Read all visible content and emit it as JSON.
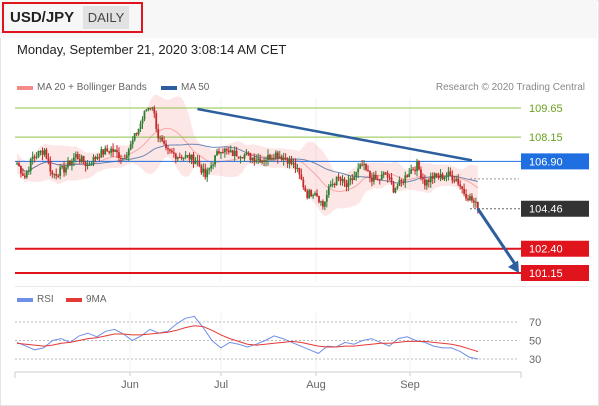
{
  "header": {
    "pair": "USD/JPY",
    "timeframe": "DAILY",
    "timestamp": "Monday, September 21, 2020 3:08:14 AM CET"
  },
  "legend": {
    "bollinger": "MA 20 + Bollinger Bands",
    "ma50": "MA 50",
    "rsi": "RSI",
    "ma9": "9MA",
    "credit": "Research © 2020 Trading Central"
  },
  "colors": {
    "up": "#2e7d32",
    "down": "#c62828",
    "bollinger": "#f48b8b",
    "ma50": "#2d5f9e",
    "resistance": "#8bc34a",
    "support": "#e0141c",
    "pivot": "#1f6fe0",
    "current": "#333333",
    "rsi": "#6f8fe8",
    "rsi_ma": "#e53935"
  },
  "chart_data": [
    {
      "type": "candlestick",
      "title": "USD/JPY",
      "x_ticks": [
        "Jun",
        "Jul",
        "Aug",
        "Sep"
      ],
      "ylim": [
        100.8,
        110.2
      ],
      "levels": [
        {
          "value": 109.65,
          "label": "109.65",
          "kind": "resistance"
        },
        {
          "value": 108.15,
          "label": "108.15",
          "kind": "resistance"
        },
        {
          "value": 106.9,
          "label": "106.90",
          "kind": "pivot"
        },
        {
          "value": 104.46,
          "label": "104.46",
          "kind": "current"
        },
        {
          "value": 102.4,
          "label": "102.40",
          "kind": "support"
        },
        {
          "value": 101.15,
          "label": "101.15",
          "kind": "support"
        }
      ],
      "trendline": {
        "from": {
          "t": 92,
          "value": 109.6
        },
        "to": {
          "t": 232,
          "value": 106.95
        }
      },
      "projection": {
        "from": {
          "t": 235,
          "value": 104.46
        },
        "to": {
          "t": 256,
          "value": 101.15
        }
      },
      "segments": [
        {
          "t": 0,
          "value": 106.8
        },
        {
          "t": 4,
          "value": 106.1
        },
        {
          "t": 8,
          "value": 107.1
        },
        {
          "t": 14,
          "value": 107.5
        },
        {
          "t": 18,
          "value": 106.2
        },
        {
          "t": 24,
          "value": 106.5
        },
        {
          "t": 30,
          "value": 107.2
        },
        {
          "t": 36,
          "value": 106.7
        },
        {
          "t": 42,
          "value": 107.3
        },
        {
          "t": 48,
          "value": 107.5
        },
        {
          "t": 54,
          "value": 107.1
        },
        {
          "t": 58,
          "value": 107.7
        },
        {
          "t": 62,
          "value": 108.6
        },
        {
          "t": 66,
          "value": 109.6
        },
        {
          "t": 69,
          "value": 109.8
        },
        {
          "t": 72,
          "value": 108.2
        },
        {
          "t": 76,
          "value": 107.4
        },
        {
          "t": 82,
          "value": 107.2
        },
        {
          "t": 88,
          "value": 107.1
        },
        {
          "t": 92,
          "value": 106.9
        },
        {
          "t": 96,
          "value": 106.1
        },
        {
          "t": 100,
          "value": 106.9
        },
        {
          "t": 104,
          "value": 107.6
        },
        {
          "t": 108,
          "value": 107.3
        },
        {
          "t": 114,
          "value": 107.3
        },
        {
          "t": 120,
          "value": 107.1
        },
        {
          "t": 126,
          "value": 107.0
        },
        {
          "t": 132,
          "value": 107.3
        },
        {
          "t": 138,
          "value": 107.0
        },
        {
          "t": 142,
          "value": 106.6
        },
        {
          "t": 145,
          "value": 105.9
        },
        {
          "t": 148,
          "value": 105.2
        },
        {
          "t": 152,
          "value": 105.4
        },
        {
          "t": 156,
          "value": 104.6
        },
        {
          "t": 160,
          "value": 105.7
        },
        {
          "t": 164,
          "value": 106.0
        },
        {
          "t": 168,
          "value": 105.6
        },
        {
          "t": 172,
          "value": 106.1
        },
        {
          "t": 176,
          "value": 106.7
        },
        {
          "t": 180,
          "value": 106.1
        },
        {
          "t": 184,
          "value": 105.9
        },
        {
          "t": 188,
          "value": 106.3
        },
        {
          "t": 192,
          "value": 105.5
        },
        {
          "t": 196,
          "value": 105.8
        },
        {
          "t": 200,
          "value": 106.4
        },
        {
          "t": 204,
          "value": 106.7
        },
        {
          "t": 208,
          "value": 105.8
        },
        {
          "t": 212,
          "value": 106.1
        },
        {
          "t": 216,
          "value": 106.1
        },
        {
          "t": 220,
          "value": 106.2
        },
        {
          "t": 224,
          "value": 106.0
        },
        {
          "t": 228,
          "value": 105.3
        },
        {
          "t": 232,
          "value": 104.9
        },
        {
          "t": 235,
          "value": 104.5
        }
      ]
    },
    {
      "type": "line",
      "title": "RSI",
      "x_ticks": [
        "Jun",
        "Jul",
        "Aug",
        "Sep"
      ],
      "ylim": [
        20,
        80
      ],
      "y_ticks": [
        70,
        50,
        30
      ],
      "series": [
        {
          "name": "RSI",
          "values": [
            48,
            44,
            40,
            42,
            50,
            52,
            48,
            55,
            58,
            54,
            60,
            62,
            57,
            50,
            55,
            62,
            58,
            60,
            68,
            74,
            76,
            64,
            50,
            42,
            48,
            46,
            43,
            46,
            50,
            55,
            52,
            48,
            44,
            40,
            36,
            44,
            43,
            48,
            46,
            50,
            52,
            48,
            44,
            52,
            54,
            50,
            48,
            44,
            42,
            42,
            38,
            32,
            30
          ]
        },
        {
          "name": "9MA",
          "values": [
            47,
            46,
            45,
            44,
            45,
            47,
            48,
            50,
            52,
            53,
            55,
            57,
            57,
            56,
            56,
            57,
            58,
            59,
            61,
            64,
            66,
            65,
            61,
            56,
            52,
            49,
            46,
            45,
            46,
            47,
            48,
            49,
            48,
            46,
            44,
            43,
            43,
            44,
            44,
            45,
            46,
            47,
            47,
            48,
            49,
            49,
            49,
            48,
            47,
            46,
            44,
            41,
            38
          ]
        }
      ]
    }
  ]
}
